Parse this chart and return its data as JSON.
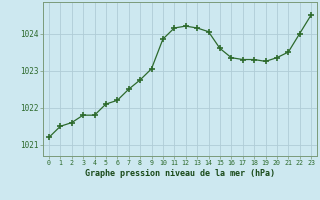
{
  "x": [
    0,
    1,
    2,
    3,
    4,
    5,
    6,
    7,
    8,
    9,
    10,
    11,
    12,
    13,
    14,
    15,
    16,
    17,
    18,
    19,
    20,
    21,
    22,
    23
  ],
  "y": [
    1021.2,
    1021.5,
    1021.6,
    1021.8,
    1021.8,
    1022.1,
    1022.2,
    1022.5,
    1022.75,
    1023.05,
    1023.85,
    1024.15,
    1024.2,
    1024.15,
    1024.05,
    1023.6,
    1023.35,
    1023.3,
    1023.3,
    1023.25,
    1023.35,
    1023.5,
    1024.0,
    1024.5
  ],
  "line_color": "#2d6a2d",
  "marker": "+",
  "marker_size": 4,
  "bg_color": "#cde8f0",
  "grid_color": "#b0ccd6",
  "xlabel": "Graphe pression niveau de la mer (hPa)",
  "xlabel_color": "#1a4a1a",
  "ylabel_ticks": [
    1021,
    1022,
    1023,
    1024
  ],
  "xtick_labels": [
    "0",
    "1",
    "2",
    "3",
    "4",
    "5",
    "6",
    "7",
    "8",
    "9",
    "10",
    "11",
    "12",
    "13",
    "14",
    "15",
    "16",
    "17",
    "18",
    "19",
    "20",
    "21",
    "22",
    "23"
  ],
  "ylim": [
    1020.7,
    1024.85
  ],
  "xlim": [
    -0.5,
    23.5
  ],
  "tick_color": "#2d6a2d",
  "border_color": "#7a9a7a",
  "figsize": [
    3.2,
    2.0
  ],
  "dpi": 100
}
